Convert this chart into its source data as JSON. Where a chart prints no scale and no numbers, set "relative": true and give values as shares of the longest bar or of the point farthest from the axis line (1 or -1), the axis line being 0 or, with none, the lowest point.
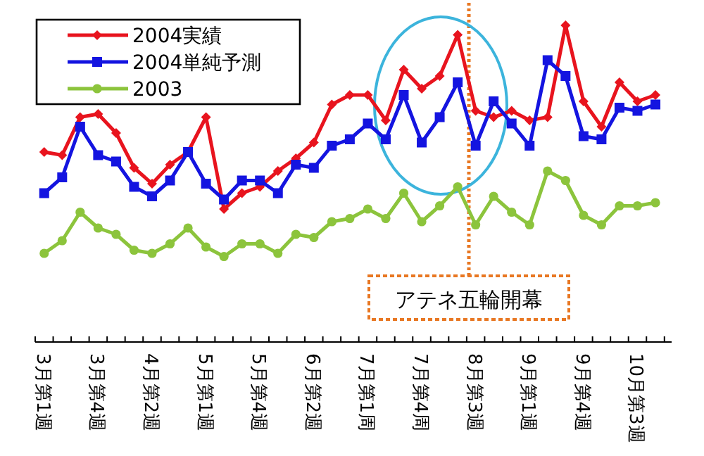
{
  "chart_data": {
    "type": "line",
    "relative": true,
    "legend": "top left",
    "line_style": "solid",
    "categories": [
      "3月第1週",
      null,
      null,
      "3月第4週",
      null,
      null,
      "4月第2週",
      null,
      null,
      "5月第1週",
      null,
      null,
      "5月第4週",
      null,
      null,
      "6月第2週",
      null,
      null,
      "7月第1周",
      null,
      null,
      "7月第4周",
      null,
      null,
      "8月第3週",
      null,
      null,
      "9月第1週",
      null,
      null,
      "9月第4週",
      null,
      null,
      "10月第3週",
      null
    ],
    "series": [
      {
        "name": "2004実績",
        "color": "#e8141e",
        "marker": "diamond",
        "values": [
          0.6,
          0.59,
          0.71,
          0.72,
          0.66,
          0.55,
          0.5,
          0.56,
          0.6,
          0.71,
          0.42,
          0.47,
          0.49,
          0.54,
          0.58,
          0.63,
          0.75,
          0.78,
          0.78,
          0.7,
          0.86,
          0.8,
          0.84,
          0.97,
          0.73,
          0.71,
          0.73,
          0.7,
          0.71,
          1.0,
          0.76,
          0.68,
          0.82,
          0.76,
          0.78
        ]
      },
      {
        "name": "2004単純予測",
        "color": "#1414e0",
        "marker": "square",
        "values": [
          0.47,
          0.52,
          0.68,
          0.59,
          0.57,
          0.49,
          0.46,
          0.51,
          0.6,
          0.5,
          0.45,
          0.51,
          0.51,
          0.47,
          0.56,
          0.55,
          0.62,
          0.64,
          0.69,
          0.64,
          0.78,
          0.63,
          0.71,
          0.82,
          0.62,
          0.76,
          0.69,
          0.62,
          0.89,
          0.84,
          0.65,
          0.64,
          0.74,
          0.73,
          0.75
        ]
      },
      {
        "name": "2003",
        "color": "#8cc43c",
        "marker": "circle",
        "values": [
          0.28,
          0.32,
          0.41,
          0.36,
          0.34,
          0.29,
          0.28,
          0.31,
          0.36,
          0.3,
          0.27,
          0.31,
          0.31,
          0.28,
          0.34,
          0.33,
          0.38,
          0.39,
          0.42,
          0.39,
          0.47,
          0.38,
          0.43,
          0.49,
          0.37,
          0.46,
          0.41,
          0.37,
          0.54,
          0.51,
          0.4,
          0.37,
          0.43,
          0.43,
          0.44
        ]
      }
    ],
    "annotations": [
      "アテネ五輪開幕"
    ]
  }
}
